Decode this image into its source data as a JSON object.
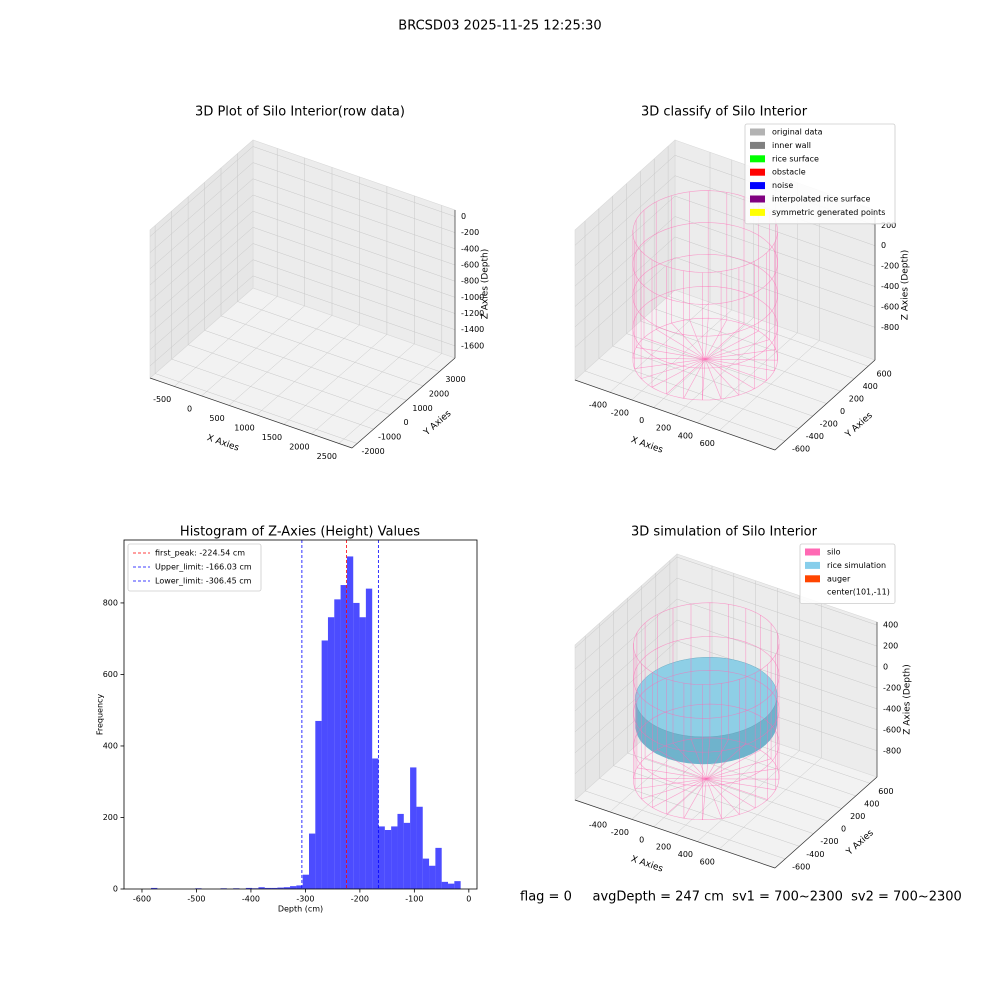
{
  "title": "BRCSD03 2025-11-25 12:25:30",
  "footer": "flag = 0     avgDepth = 247 cm  sv1 = 700~2300  sv2 = 700~2300",
  "chart_data": [
    {
      "type": "scatter3d",
      "title": "3D Plot of Silo Interior(row data)",
      "xlabel": "X Axies",
      "ylabel": "Y Axies",
      "zlabel": "Z Axies (Depth)",
      "xlim": [
        -940,
        2740
      ],
      "ylim": [
        -2310,
        3940
      ],
      "zlim": [
        -1750,
        80
      ],
      "xticks": [
        -500,
        0,
        500,
        1000,
        1500,
        2000,
        2500
      ],
      "yticks": [
        -2000,
        -1000,
        0,
        1000,
        2000,
        3000
      ],
      "zticks": [
        -1600,
        -1400,
        -1200,
        -1000,
        -800,
        -600,
        -400,
        -200,
        0
      ]
    },
    {
      "type": "scatter3d",
      "title": "3D classify of Silo Interior",
      "xlabel": "X Axies",
      "ylabel": "Y Axies",
      "zlabel": "Z Axies (Depth)",
      "xlim": [
        -720,
        1110
      ],
      "ylim": [
        -745,
        700
      ],
      "zlim": [
        -1120,
        350
      ],
      "xticks": [
        -400,
        -200,
        0,
        200,
        400,
        600
      ],
      "yticks": [
        -600,
        -400,
        -200,
        0,
        200,
        400,
        600
      ],
      "zticks": [
        -800,
        -600,
        -400,
        -200,
        0,
        200
      ],
      "legend_loc": "upper right",
      "legend": [
        {
          "name": "original data",
          "color": "#b3b3b3"
        },
        {
          "name": "inner wall",
          "color": "#808080"
        },
        {
          "name": "rice surface",
          "color": "#00ff00"
        },
        {
          "name": "obstacle",
          "color": "#ff0000"
        },
        {
          "name": "noise",
          "color": "#0000ff"
        },
        {
          "name": "interpolated rice surface",
          "color": "#800080"
        },
        {
          "name": "symmetric generated points",
          "color": "#ffff00"
        }
      ]
    },
    {
      "type": "histogram",
      "title": "Histogram of Z-Axies (Height) Values",
      "xlabel": "Depth (cm)",
      "ylabel": "Frequency",
      "color": "#0000ff",
      "alpha": 0.7,
      "xlim": [
        -633,
        15
      ],
      "ylim": [
        0,
        976
      ],
      "xticks": [
        -600,
        -500,
        -400,
        -300,
        -200,
        -100,
        0
      ],
      "yticks": [
        0,
        200,
        400,
        600,
        800
      ],
      "bins": [
        -595,
        -583.4,
        -571.8,
        -560.2,
        -548.6,
        -537,
        -525.4,
        -513.8,
        -502.2,
        -490.6,
        -479,
        -467.4,
        -455.8,
        -444.2,
        -432.6,
        -421,
        -409.4,
        -397.8,
        -386.2,
        -374.6,
        -363,
        -351.4,
        -339.8,
        -328.2,
        -316.6,
        -305,
        -293.4,
        -281.8,
        -270.2,
        -258.6,
        -247,
        -235.4,
        -223.8,
        -212.2,
        -200.6,
        -189,
        -177.4,
        -165.8,
        -154.2,
        -142.6,
        -131,
        -119.4,
        -107.8,
        -96.2,
        -84.6,
        -73,
        -61.4,
        -49.8,
        -38.2,
        -26.6,
        -15
      ],
      "counts": [
        0,
        3,
        0,
        0,
        0,
        0,
        0,
        0,
        2,
        0,
        0,
        0,
        2,
        0,
        2,
        0,
        3,
        2,
        5,
        3,
        3,
        4,
        5,
        8,
        10,
        40,
        155,
        470,
        695,
        760,
        810,
        850,
        930,
        800,
        760,
        840,
        365,
        175,
        165,
        175,
        210,
        185,
        340,
        230,
        85,
        65,
        115,
        20,
        15,
        22
      ],
      "legend_loc": "upper left",
      "lines": [
        {
          "name": "first_peak: -224.54 cm",
          "value": -224.54,
          "color": "#ff0000"
        },
        {
          "name": "Upper_limit: -166.03 cm",
          "value": -166.03,
          "color": "#0000ff"
        },
        {
          "name": "Lower_limit: -306.45 cm",
          "value": -306.45,
          "color": "#0000ff"
        }
      ]
    },
    {
      "type": "surface3d",
      "title": "3D simulation of Silo Interior",
      "xlabel": "X Axies",
      "ylabel": "Y Axies",
      "zlabel": "Z Axies (Depth)",
      "xlim": [
        -720,
        1110
      ],
      "ylim": [
        -745,
        700
      ],
      "zlim": [
        -1050,
        430
      ],
      "xticks": [
        -400,
        -200,
        0,
        200,
        400,
        600
      ],
      "yticks": [
        -600,
        -400,
        -200,
        0,
        200,
        400,
        600
      ],
      "zticks": [
        -800,
        -600,
        -400,
        -200,
        0,
        200,
        400
      ],
      "legend_loc": "upper right",
      "legend": [
        {
          "name": "silo",
          "color": "#ff69b4"
        },
        {
          "name": "rice simulation",
          "color": "#87ceeb"
        },
        {
          "name": "auger",
          "color": "#ff4500"
        },
        {
          "name": "center(101,-11)"
        }
      ]
    }
  ]
}
